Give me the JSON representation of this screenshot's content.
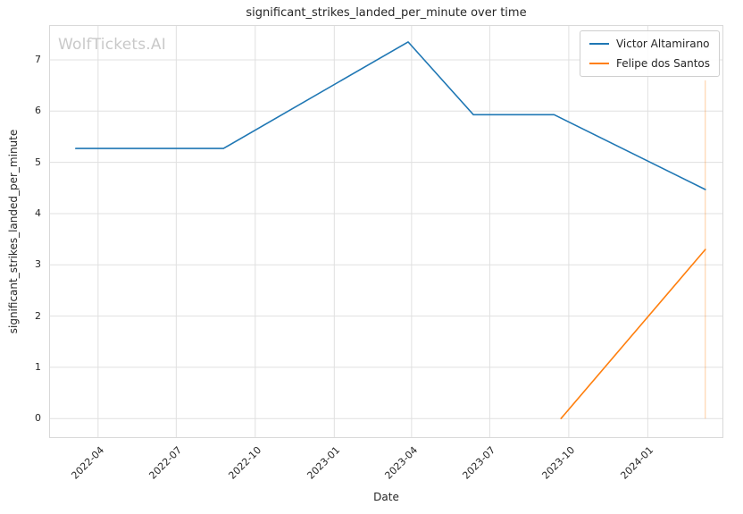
{
  "title": "significant_strikes_landed_per_minute over time",
  "watermark": "WolfTickets.AI",
  "xlabel": "Date",
  "ylabel": "significant_strikes_landed_per_minute",
  "legend": {
    "position": "top-right",
    "entries": [
      {
        "label": "Victor Altamirano",
        "color": "#1f77b4"
      },
      {
        "label": "Felipe dos Santos",
        "color": "#ff7f0e"
      }
    ]
  },
  "chart_data": {
    "type": "line",
    "title": "significant_strikes_landed_per_minute over time",
    "xlabel": "Date",
    "ylabel": "significant_strikes_landed_per_minute",
    "grid": true,
    "legend_position": "upper right",
    "x_ticks": [
      "2022-04",
      "2022-07",
      "2022-10",
      "2023-01",
      "2023-04",
      "2023-07",
      "2023-10",
      "2024-01"
    ],
    "y_ticks": [
      0,
      1,
      2,
      3,
      4,
      5,
      6,
      7
    ],
    "x_domain": [
      "2022-02-03",
      "2024-03-29"
    ],
    "y_domain": [
      -0.38,
      7.68
    ],
    "series": [
      {
        "name": "Victor Altamirano",
        "color": "#1f77b4",
        "points": [
          [
            "2022-03-06",
            5.27
          ],
          [
            "2022-08-25",
            5.27
          ],
          [
            "2023-03-28",
            7.35
          ],
          [
            "2023-06-12",
            5.93
          ],
          [
            "2023-09-14",
            5.93
          ],
          [
            "2024-03-08",
            4.47
          ]
        ]
      },
      {
        "name": "Felipe dos Santos",
        "color": "#ff7f0e",
        "points": [
          [
            "2023-09-22",
            0.0
          ],
          [
            "2024-03-08",
            3.3
          ]
        ]
      }
    ],
    "event_vline": {
      "x": "2024-03-08",
      "y0": 0.0,
      "y1": 6.6,
      "color": "#ff7f0e",
      "opacity": 0.4
    }
  }
}
